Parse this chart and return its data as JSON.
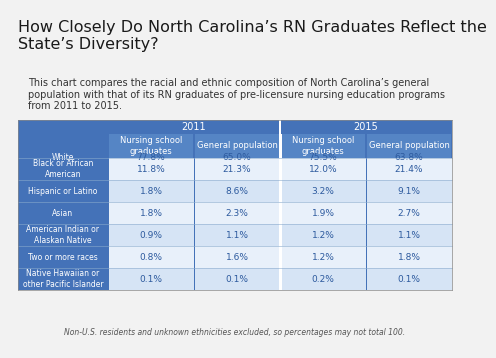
{
  "title": "How Closely Do North Carolina’s RN Graduates Reflect the\nState’s Diversity?",
  "subtitle": "This chart compares the racial and ethnic composition of North Carolina’s general\npopulation with that of its RN graduates of pre-licensure nursing education programs\nfrom 2011 to 2015.",
  "footnote": "Non-U.S. residents and unknown ethnicities excluded, so percentages may not total 100.",
  "col_headers_sub": [
    "Nursing school\ngraduates",
    "General population",
    "Nursing school\ngraduates",
    "General population"
  ],
  "row_labels": [
    "White",
    "Black or African\nAmerican",
    "Hispanic or Latino",
    "Asian",
    "American Indian or\nAlaskan Native",
    "Two or more races",
    "Native Hawaiian or\nother Pacific Islander"
  ],
  "data": [
    [
      "77.8%",
      "65.0%",
      "75.5%",
      "63.8%"
    ],
    [
      "11.8%",
      "21.3%",
      "12.0%",
      "21.4%"
    ],
    [
      "1.8%",
      "8.6%",
      "3.2%",
      "9.1%"
    ],
    [
      "1.8%",
      "2.3%",
      "1.9%",
      "2.7%"
    ],
    [
      "0.9%",
      "1.1%",
      "1.2%",
      "1.1%"
    ],
    [
      "0.8%",
      "1.6%",
      "1.2%",
      "1.8%"
    ],
    [
      "0.1%",
      "0.1%",
      "0.2%",
      "0.1%"
    ]
  ],
  "header_dark_color": "#4472b8",
  "header_mid_color": "#5585c5",
  "row_label_color": "#4472b8",
  "row_odd_color": "#d6e4f5",
  "row_even_color": "#e8f0fa",
  "text_color_data": "#2d5a9e",
  "bg_color": "#f2f2f2",
  "title_color": "#1a1a1a",
  "subtitle_color": "#333333",
  "footnote_color": "#555555",
  "white_divider": "#ffffff",
  "table_border_color": "#8aaacc"
}
